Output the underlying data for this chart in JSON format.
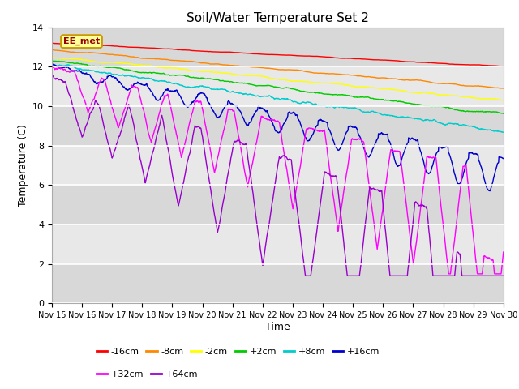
{
  "title": "Soil/Water Temperature Set 2",
  "xlabel": "Time",
  "ylabel": "Temperature (C)",
  "ylim": [
    0,
    14
  ],
  "xlim": [
    0,
    15
  ],
  "background_color": "#ffffff",
  "plot_bg_color": "#d8d8d8",
  "band_colors": [
    "#d8d8d8",
    "#e8e8e8"
  ],
  "grid_color": "#ffffff",
  "annotation_text": "EE_met",
  "annotation_bg": "#ffff99",
  "annotation_border": "#cc9900",
  "annotation_text_color": "#990000",
  "xtick_labels": [
    "Nov 15",
    "Nov 16",
    "Nov 17",
    "Nov 18",
    "Nov 19",
    "Nov 20",
    "Nov 21",
    "Nov 22",
    "Nov 23",
    "Nov 24",
    "Nov 25",
    "Nov 26",
    "Nov 27",
    "Nov 28",
    "Nov 29",
    "Nov 30"
  ],
  "ytick_values": [
    0,
    2,
    4,
    6,
    8,
    10,
    12,
    14
  ],
  "series": [
    {
      "label": "-16cm",
      "color": "#ff0000"
    },
    {
      "label": "-8cm",
      "color": "#ff8800"
    },
    {
      "label": "-2cm",
      "color": "#ffff00"
    },
    {
      "label": "+2cm",
      "color": "#00cc00"
    },
    {
      "label": "+8cm",
      "color": "#00cccc"
    },
    {
      "label": "+16cm",
      "color": "#0000cc"
    },
    {
      "label": "+32cm",
      "color": "#ff00ff"
    },
    {
      "label": "+64cm",
      "color": "#9900cc"
    }
  ]
}
